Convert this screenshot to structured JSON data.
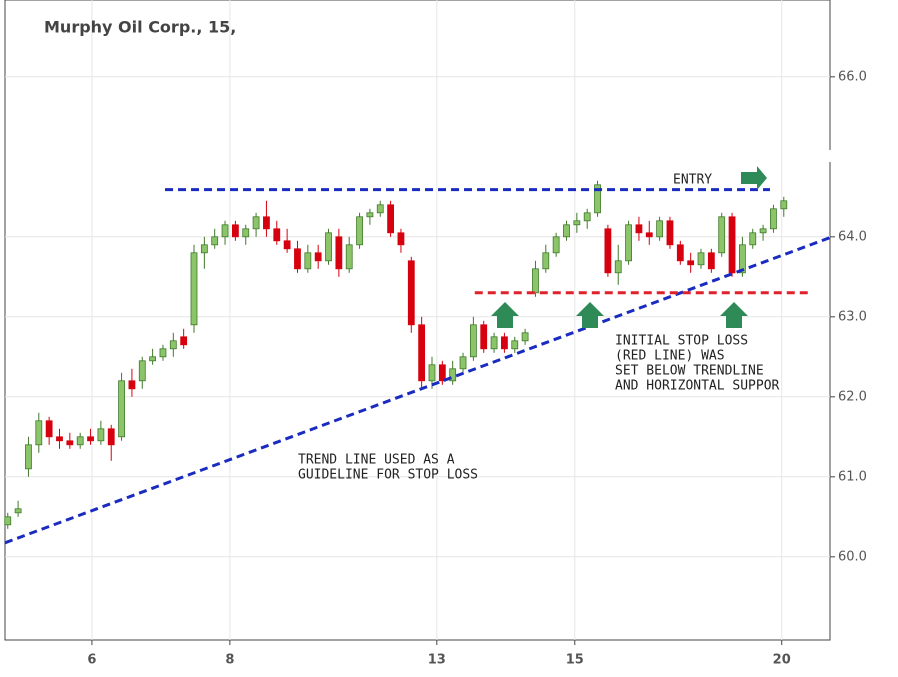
{
  "chart_data": {
    "type": "candlestick",
    "title": "Murphy Oil Corp., 15,",
    "x": [
      -1.22,
      -1.07,
      -0.92,
      -0.77,
      -0.62,
      -0.47,
      -0.32,
      -0.17,
      -0.02,
      0.13,
      0.28,
      0.43,
      0.58,
      0.73,
      0.88,
      1.03,
      1.18,
      1.33,
      1.48,
      1.63,
      1.78,
      1.93,
      2.08,
      2.23,
      2.38,
      2.53,
      2.68,
      2.83,
      2.98,
      3.13,
      3.28,
      3.43,
      3.58,
      3.73,
      3.88,
      4.03,
      4.18,
      4.33,
      4.48,
      4.63,
      4.78,
      4.93,
      5.08,
      5.23,
      5.38,
      5.53,
      5.68,
      5.83,
      5.98,
      6.13,
      6.28,
      6.43,
      6.58,
      6.73,
      6.88,
      7.03,
      7.18,
      7.33,
      7.48,
      7.63,
      7.78,
      7.93,
      8.08,
      8.23,
      8.38,
      8.53,
      8.68,
      8.83,
      8.98,
      9.13,
      9.28,
      9.43,
      9.58,
      9.73,
      9.88,
      10.03
    ],
    "open": [
      60.4,
      60.55,
      61.1,
      61.4,
      61.7,
      61.5,
      61.45,
      61.4,
      61.5,
      61.45,
      61.6,
      61.5,
      62.2,
      62.2,
      62.45,
      62.5,
      62.6,
      62.75,
      62.9,
      63.8,
      63.9,
      64.0,
      64.15,
      64.0,
      64.1,
      64.25,
      64.1,
      63.95,
      63.85,
      63.6,
      63.8,
      63.7,
      64.0,
      63.6,
      63.9,
      64.25,
      64.3,
      64.4,
      64.05,
      63.7,
      62.9,
      62.2,
      62.4,
      62.2,
      62.35,
      62.5,
      62.9,
      62.6,
      62.75,
      62.6,
      62.7,
      63.3,
      63.6,
      63.8,
      64.0,
      64.15,
      64.2,
      64.3,
      64.1,
      63.55,
      63.7,
      64.15,
      64.05,
      64.0,
      64.2,
      63.9,
      63.7,
      63.65,
      63.8,
      63.8,
      64.25,
      63.55,
      63.9,
      64.05,
      64.1,
      64.35
    ],
    "high": [
      60.55,
      60.7,
      61.5,
      61.8,
      61.75,
      61.6,
      61.55,
      61.55,
      61.6,
      61.7,
      61.65,
      62.3,
      62.35,
      62.5,
      62.6,
      62.65,
      62.8,
      62.85,
      63.9,
      64.0,
      64.1,
      64.2,
      64.2,
      64.15,
      64.3,
      64.45,
      64.2,
      64.1,
      63.95,
      63.9,
      63.9,
      64.1,
      64.1,
      64.0,
      64.3,
      64.35,
      64.45,
      64.45,
      64.1,
      63.75,
      63.0,
      62.5,
      62.45,
      62.45,
      62.55,
      63.0,
      62.95,
      62.8,
      62.8,
      62.75,
      62.85,
      63.7,
      63.9,
      64.05,
      64.2,
      64.3,
      64.35,
      64.7,
      64.15,
      63.9,
      64.2,
      64.25,
      64.2,
      64.25,
      64.25,
      63.95,
      63.8,
      63.85,
      63.85,
      64.3,
      64.3,
      64.0,
      64.1,
      64.15,
      64.4,
      64.5
    ],
    "low": [
      60.35,
      60.5,
      61.0,
      61.3,
      61.4,
      61.35,
      61.35,
      61.35,
      61.4,
      61.4,
      61.2,
      61.45,
      62.0,
      62.1,
      62.4,
      62.45,
      62.5,
      62.6,
      62.8,
      63.6,
      63.85,
      63.9,
      63.95,
      63.9,
      64.0,
      64.0,
      63.9,
      63.8,
      63.55,
      63.55,
      63.6,
      63.65,
      63.5,
      63.55,
      63.85,
      64.15,
      64.25,
      64.0,
      63.8,
      62.8,
      62.1,
      62.1,
      62.15,
      62.15,
      62.3,
      62.45,
      62.55,
      62.55,
      62.55,
      62.55,
      62.65,
      63.25,
      63.55,
      63.75,
      63.95,
      64.05,
      64.1,
      64.25,
      63.5,
      63.4,
      63.65,
      63.95,
      63.9,
      63.95,
      63.85,
      63.65,
      63.55,
      63.6,
      63.55,
      63.75,
      63.5,
      63.5,
      63.85,
      63.95,
      64.05,
      64.25
    ],
    "close": [
      60.5,
      60.6,
      61.4,
      61.7,
      61.5,
      61.45,
      61.4,
      61.5,
      61.45,
      61.6,
      61.4,
      62.2,
      62.1,
      62.45,
      62.5,
      62.6,
      62.7,
      62.65,
      63.8,
      63.9,
      64.0,
      64.15,
      64.0,
      64.1,
      64.25,
      64.1,
      63.95,
      63.85,
      63.6,
      63.8,
      63.7,
      64.05,
      63.6,
      63.9,
      64.25,
      64.3,
      64.4,
      64.05,
      63.9,
      62.9,
      62.2,
      62.4,
      62.2,
      62.35,
      62.5,
      62.9,
      62.6,
      62.75,
      62.6,
      62.7,
      62.8,
      63.6,
      63.8,
      64.0,
      64.15,
      64.2,
      64.3,
      64.65,
      63.55,
      63.7,
      64.15,
      64.05,
      64.0,
      64.2,
      63.9,
      63.7,
      63.65,
      63.8,
      63.6,
      64.25,
      63.55,
      63.9,
      64.05,
      64.1,
      64.35,
      64.45
    ],
    "up_color": "#8cc46a",
    "down_color": "#d7000f",
    "xlim": [
      -1.26,
      10.7
    ],
    "xticks": [
      {
        "value": 0,
        "label": "6"
      },
      {
        "value": 2,
        "label": "8"
      },
      {
        "value": 5,
        "label": "13"
      },
      {
        "value": 7,
        "label": "15"
      },
      {
        "value": 10,
        "label": "20"
      }
    ],
    "ylim": [
      58.96,
      66.96
    ],
    "yticks": [
      {
        "value": 60,
        "label": "60.0"
      },
      {
        "value": 61,
        "label": "61.0"
      },
      {
        "value": 62,
        "label": "62.0"
      },
      {
        "value": 63,
        "label": "63.0"
      },
      {
        "value": 64,
        "label": "64.0"
      },
      {
        "value": 66,
        "label": "66.0"
      }
    ],
    "grid": true,
    "lines": [
      {
        "x": [
          -1.26,
          10.7
        ],
        "y": [
          60.175,
          63.99
        ],
        "color": "#1a2bbf"
      },
      {
        "x": [
          1.06,
          9.83
        ],
        "y": [
          64.59,
          64.59
        ],
        "color": "#1a2bbf"
      },
      {
        "x": [
          5.55,
          10.43
        ],
        "y": [
          63.3,
          63.3
        ],
        "color": "#e0202a"
      }
    ],
    "annotations": [
      "ENTRY",
      "TREND LINE USED AS A",
      "GUIDELINE FOR STOP LOSS",
      "INITIAL STOP LOSS",
      "(RED LINE) WAS",
      "SET BELOW TRENDLINE",
      "AND HORIZONTAL SUPPOR"
    ]
  }
}
